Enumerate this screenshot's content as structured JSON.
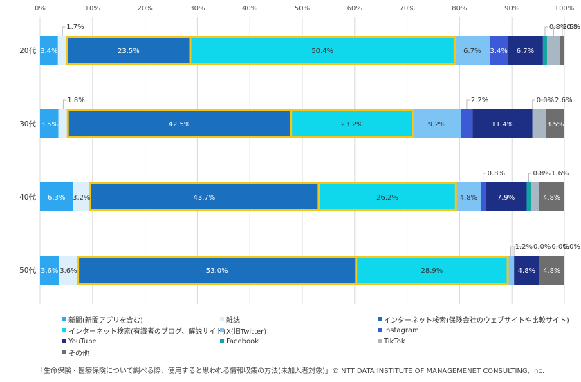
{
  "chart_data": {
    "type": "bar",
    "orientation": "horizontal-stacked-100",
    "categories": [
      "20代",
      "30代",
      "40代",
      "50代"
    ],
    "x_ticks": [
      "0%",
      "10%",
      "20%",
      "30%",
      "40%",
      "50%",
      "60%",
      "70%",
      "80%",
      "90%",
      "100%"
    ],
    "xlim": [
      0,
      100
    ],
    "grid": true,
    "legend_position": "bottom",
    "highlight_series": [
      "インターネット検索(保険会社のウェブサイトや比較サイト)",
      "インターネット検索(有識者のブログ、解説サイト)"
    ],
    "highlight_color": "#F5C518",
    "series": [
      {
        "name": "新聞(新聞アプリを含む)",
        "color": "#2EA7F0",
        "values": [
          3.4,
          3.5,
          6.3,
          3.6
        ],
        "labels": [
          "3.4%",
          "3.5%",
          "6.3%",
          "3.6%"
        ]
      },
      {
        "name": "雑誌",
        "color": "#DDEFFA",
        "values": [
          1.7,
          1.8,
          3.2,
          3.6
        ],
        "labels": [
          "1.7%",
          "1.8%",
          "3.2%",
          "3.6%"
        ]
      },
      {
        "name": "インターネット検索(保険会社のウェブサイトや比較サイト)",
        "color": "#1A6FBF",
        "values": [
          23.5,
          42.5,
          43.7,
          53.0
        ],
        "labels": [
          "23.5%",
          "42.5%",
          "43.7%",
          "53.0%"
        ]
      },
      {
        "name": "インターネット検索(有識者のブログ、解説サイト)",
        "color": "#0FD8EC",
        "values": [
          50.4,
          23.2,
          26.2,
          28.9
        ],
        "labels": [
          "50.4%",
          "23.2%",
          "26.2%",
          "28.9%"
        ]
      },
      {
        "name": "X(旧Twitter)",
        "color": "#7DC4F5",
        "values": [
          6.7,
          9.2,
          4.8,
          1.2
        ],
        "labels": [
          "6.7%",
          "9.2%",
          "4.8%",
          "1.2%"
        ]
      },
      {
        "name": "Instagram",
        "color": "#3D5AD6",
        "values": [
          3.4,
          2.2,
          0.8,
          0.0
        ],
        "labels": [
          "3.4%",
          "2.2%",
          "0.8%",
          "0.0%"
        ]
      },
      {
        "name": "YouTube",
        "color": "#1C2F85",
        "values": [
          6.7,
          11.4,
          7.9,
          4.8
        ],
        "labels": [
          "6.7%",
          "11.4%",
          "7.9%",
          "4.8%"
        ]
      },
      {
        "name": "Facebook",
        "color": "#12A3A3",
        "values": [
          0.8,
          0.0,
          0.8,
          0.0
        ],
        "labels": [
          "0.8%",
          "0.0%",
          "0.8%",
          "0.0%"
        ]
      },
      {
        "name": "TikTok",
        "color": "#A9B7C3",
        "values": [
          2.5,
          2.6,
          1.6,
          0.0
        ],
        "labels": [
          "2.5%",
          "2.6%",
          "1.6%",
          "0.0%"
        ]
      },
      {
        "name": "その他",
        "color": "#6E6E6E",
        "values": [
          0.8,
          3.5,
          4.8,
          4.8
        ],
        "labels": [
          "0.8",
          "3.5%",
          "4.8%",
          "4.8%"
        ]
      }
    ]
  },
  "source_note": "「生命保険・医療保険について調べる際、使用すると思われる情報収集の方法(未加入者対象)」© NTT DATA INSTITUTE OF MANAGEMENET CONSULTING, Inc."
}
